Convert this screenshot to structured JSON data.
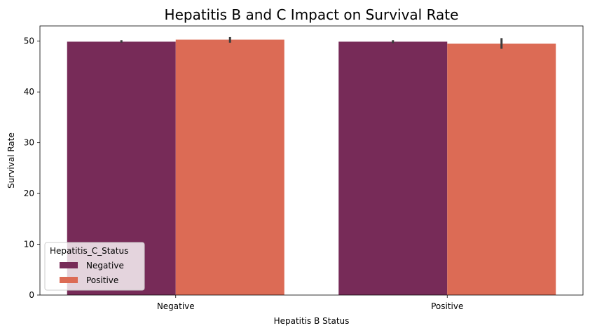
{
  "chart_data": {
    "type": "bar",
    "title": "Hepatitis B and C Impact on Survival Rate",
    "xlabel": "Hepatitis B Status",
    "ylabel": "Survival Rate",
    "categories": [
      "Negative",
      "Positive"
    ],
    "ylim": [
      0,
      53
    ],
    "yticks": [
      0,
      10,
      20,
      30,
      40,
      50
    ],
    "grid": false,
    "legend": {
      "title": "Hepatitis_C_Status",
      "placement": "lower-left"
    },
    "series": [
      {
        "name": "Negative",
        "color": "#772b58",
        "values": [
          49.9,
          49.9
        ],
        "ci_low": [
          49.7,
          49.6
        ],
        "ci_high": [
          50.2,
          50.2
        ]
      },
      {
        "name": "Positive",
        "color": "#dc6b55",
        "values": [
          50.3,
          49.5
        ],
        "ci_low": [
          49.7,
          48.5
        ],
        "ci_high": [
          50.8,
          50.6
        ]
      }
    ]
  }
}
